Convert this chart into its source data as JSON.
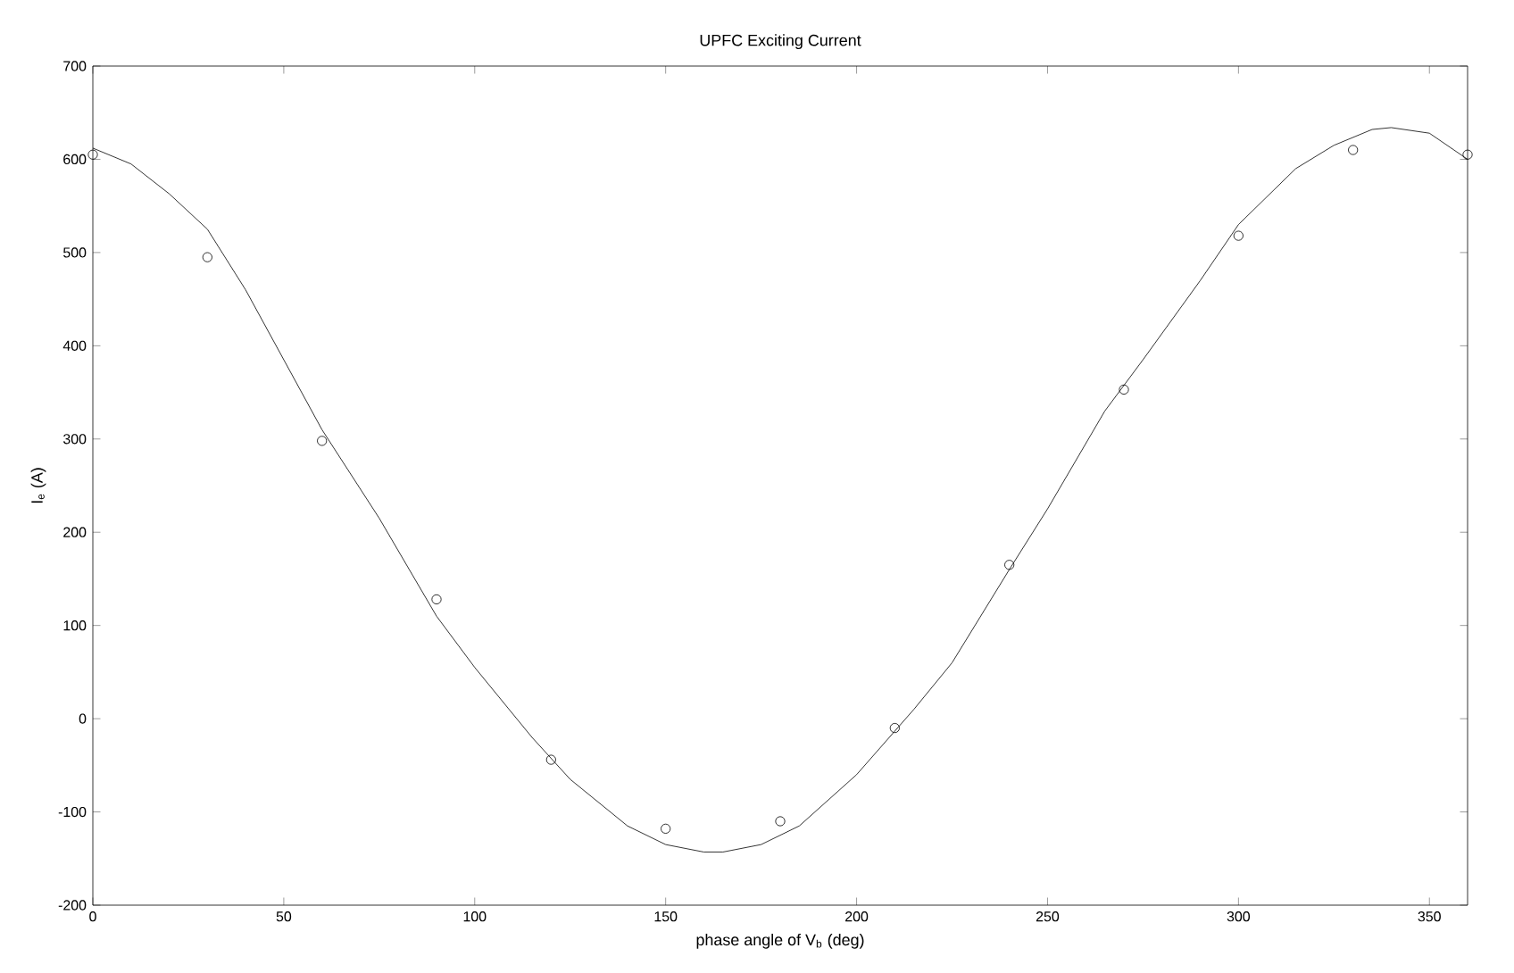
{
  "chart_data": {
    "type": "scatter",
    "title": "UPFC Exciting Current",
    "xlabel": "phase angle of V$_{b}$ (deg)",
    "ylabel": "I$_{e}$ (A)",
    "xlim": [
      0,
      360
    ],
    "ylim": [
      -200,
      700
    ],
    "xticks": [
      0,
      50,
      100,
      150,
      200,
      250,
      300,
      350
    ],
    "yticks": [
      -200,
      -100,
      0,
      100,
      200,
      300,
      400,
      500,
      600,
      700
    ],
    "series": [
      {
        "marker": "circle",
        "color": "#000000",
        "x": [
          0,
          30,
          60,
          90,
          120,
          150,
          180,
          210,
          240,
          270,
          300,
          330,
          360
        ],
        "values": [
          605,
          495,
          298,
          128,
          -44,
          -118,
          -110,
          -10,
          165,
          353,
          518,
          610,
          605
        ]
      },
      {
        "type": "line",
        "marker": "none",
        "line_style": "solid",
        "color": "#000000",
        "x": [
          0,
          10,
          20,
          30,
          40,
          50,
          60,
          75,
          90,
          100,
          115,
          125,
          140,
          150,
          160,
          165,
          175,
          185,
          200,
          215,
          225,
          240,
          250,
          265,
          275,
          290,
          300,
          315,
          325,
          335,
          340,
          350,
          360
        ],
        "values": [
          612,
          595,
          563,
          525,
          460,
          385,
          310,
          215,
          110,
          55,
          -20,
          -65,
          -115,
          -135,
          -143,
          -143,
          -135,
          -115,
          -60,
          10,
          60,
          160,
          225,
          330,
          385,
          470,
          530,
          590,
          615,
          632,
          634,
          628,
          600
        ]
      }
    ]
  }
}
